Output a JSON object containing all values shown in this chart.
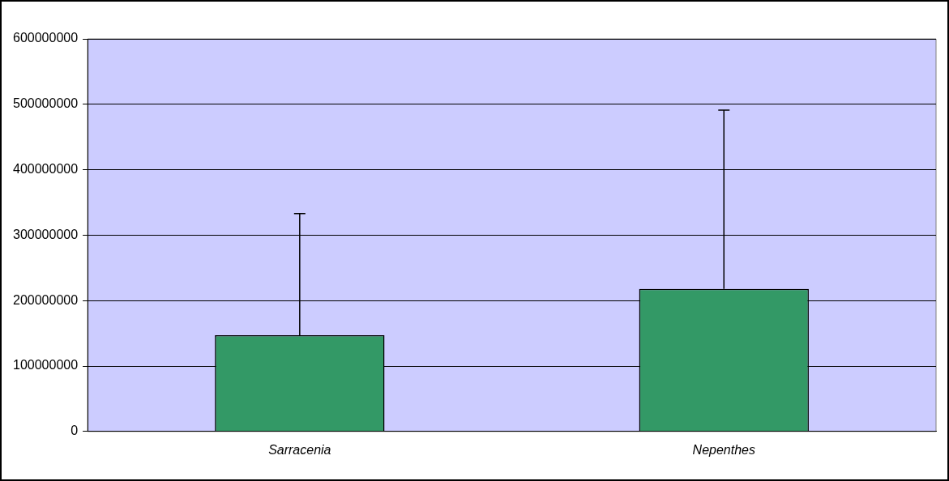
{
  "chart_data": {
    "type": "bar",
    "categories": [
      "Sarracenia",
      "Nepenthes"
    ],
    "values": [
      147000000,
      218000000
    ],
    "errors": [
      [
        147000000,
        333000000
      ],
      [
        218000000,
        491000000
      ]
    ],
    "color": "#339966",
    "ylim": [
      0,
      600000000
    ],
    "yticks": [
      0,
      100000000,
      200000000,
      300000000,
      400000000,
      500000000,
      600000000
    ],
    "grid": "y",
    "legend": false
  }
}
